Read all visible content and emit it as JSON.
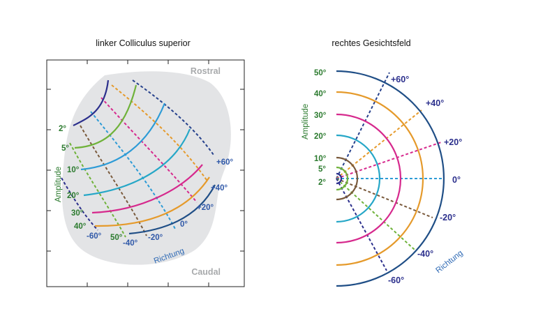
{
  "left_panel": {
    "title": "linker Colliculus superior",
    "rostral": "Rostral",
    "caudal": "Caudal",
    "amplitude_axis": "Amplitude",
    "direction_axis": "Richtung",
    "amplitude_labels": [
      "2°",
      "5°",
      "10°",
      "20°",
      "30°",
      "40°",
      "50°"
    ],
    "direction_labels": [
      "+60°",
      "+40°",
      "+20°",
      "0°",
      "-20°",
      "-40°",
      "-60°"
    ]
  },
  "right_panel": {
    "title": "rechtes Gesichtsfeld",
    "amplitude_axis": "Amplitude",
    "direction_axis": "Richtung",
    "amplitude_labels": [
      "50°",
      "40°",
      "30°",
      "20°",
      "10°",
      "5°",
      "2°"
    ],
    "direction_labels": [
      "+60°",
      "+40°",
      "+20°",
      "0°",
      "-20°",
      "-40°",
      "-60°"
    ],
    "amplitudes": [
      2,
      5,
      10,
      20,
      30,
      40,
      50
    ],
    "directions": [
      60,
      40,
      20,
      0,
      -20,
      -40,
      -60
    ]
  },
  "colors": {
    "a2": "#2b2f8c",
    "a5": "#6fb23a",
    "a10": "#2d9bd6",
    "a20": "#26a7c7",
    "a30": "#d6298d",
    "a40": "#e59a2b",
    "a50": "#1f4e86",
    "d60": "#26418c",
    "d40": "#e59a2b",
    "d20": "#d6298d",
    "d0": "#2d9bd6",
    "dm20": "#7a5a3c",
    "dm40": "#6fb23a",
    "dm60": "#2b2f8c",
    "inner10": "#7a5a3c",
    "inner5": "#6fb23a",
    "inner2": "#2b2f8c"
  }
}
